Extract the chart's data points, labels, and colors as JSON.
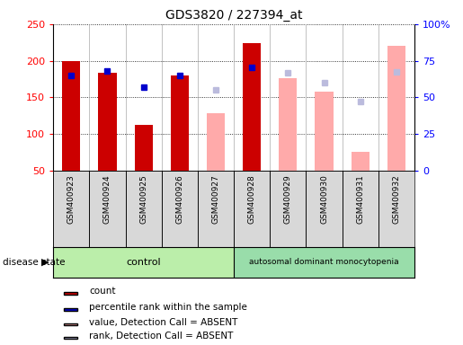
{
  "title": "GDS3820 / 227394_at",
  "samples": [
    "GSM400923",
    "GSM400924",
    "GSM400925",
    "GSM400926",
    "GSM400927",
    "GSM400928",
    "GSM400929",
    "GSM400930",
    "GSM400931",
    "GSM400932"
  ],
  "count_values": [
    199,
    184,
    112,
    180,
    null,
    224,
    null,
    null,
    null,
    null
  ],
  "blue_marker_values": [
    180,
    186,
    164,
    180,
    null,
    191,
    null,
    null,
    null,
    null
  ],
  "absent_value": [
    null,
    null,
    null,
    null,
    129,
    null,
    176,
    158,
    76,
    220
  ],
  "absent_rank": [
    null,
    null,
    null,
    null,
    161,
    null,
    184,
    170,
    144,
    185
  ],
  "ylim_min": 50,
  "ylim_max": 250,
  "yticks": [
    50,
    100,
    150,
    200,
    250
  ],
  "y2lim_min": 0,
  "y2lim_max": 100,
  "y2ticks": [
    0,
    25,
    50,
    75,
    100
  ],
  "y2ticklabels": [
    "0",
    "25",
    "50",
    "75",
    "100%"
  ],
  "n_control": 5,
  "n_disease": 5,
  "control_label": "control",
  "disease_label": "autosomal dominant monocytopenia",
  "disease_state_label": "disease state",
  "count_color": "#cc0000",
  "percentile_color": "#0000cc",
  "absent_value_color": "#ffaaaa",
  "absent_rank_color": "#bbbbdd",
  "control_color": "#bbeeaa",
  "disease_color": "#99ddaa",
  "sample_bg_color": "#d8d8d8",
  "legend_labels": [
    "count",
    "percentile rank within the sample",
    "value, Detection Call = ABSENT",
    "rank, Detection Call = ABSENT"
  ],
  "legend_colors": [
    "#cc0000",
    "#0000cc",
    "#ffaaaa",
    "#bbbbdd"
  ]
}
